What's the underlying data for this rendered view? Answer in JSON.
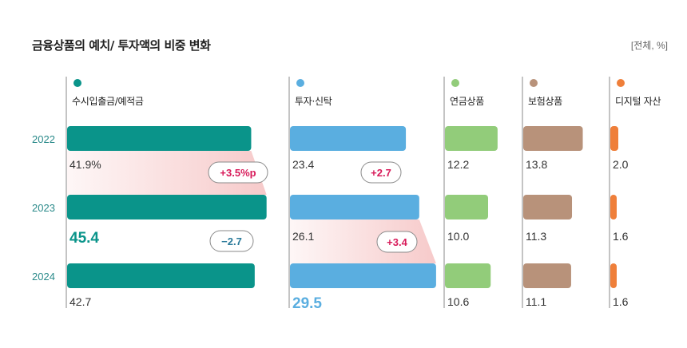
{
  "title": "금융상품의 예치/ 투자액의 비중 변화",
  "unit": "[전체, %]",
  "colors": {
    "deposit": "#0a948a",
    "trust": "#5aaee0",
    "pension": "#92cc7a",
    "insurance": "#b8927a",
    "digital": "#ef7f3a",
    "change_positive": "#d81b5a",
    "change_negative": "#2a7a9a",
    "year": "#2a8a8a",
    "band": "#f6c7c7"
  },
  "chart_data": {
    "type": "bar",
    "orientation": "horizontal",
    "categories": [
      "2022",
      "2023",
      "2024"
    ],
    "series": [
      {
        "key": "deposit",
        "name": "수시입출금/예적금",
        "values": [
          41.9,
          45.4,
          42.7
        ],
        "labels": [
          "41.9%",
          "45.4",
          "42.7"
        ],
        "highlight": 1,
        "changes": [
          "+3.5%p",
          "−2.7"
        ]
      },
      {
        "key": "trust",
        "name": "투자·신탁",
        "values": [
          23.4,
          26.1,
          29.5
        ],
        "labels": [
          "23.4",
          "26.1",
          "29.5"
        ],
        "highlight": 2,
        "changes": [
          "+2.7",
          "+3.4"
        ]
      },
      {
        "key": "pension",
        "name": "연금상품",
        "values": [
          12.2,
          10.0,
          10.6
        ],
        "labels": [
          "12.2",
          "10.0",
          "10.6"
        ]
      },
      {
        "key": "insurance",
        "name": "보험상품",
        "values": [
          13.8,
          11.3,
          11.1
        ],
        "labels": [
          "13.8",
          "11.3",
          "11.1"
        ]
      },
      {
        "key": "digital",
        "name": "디지털 자산",
        "values": [
          2.0,
          1.6,
          1.6
        ],
        "labels": [
          "2.0",
          "1.6",
          "1.6"
        ]
      }
    ]
  }
}
